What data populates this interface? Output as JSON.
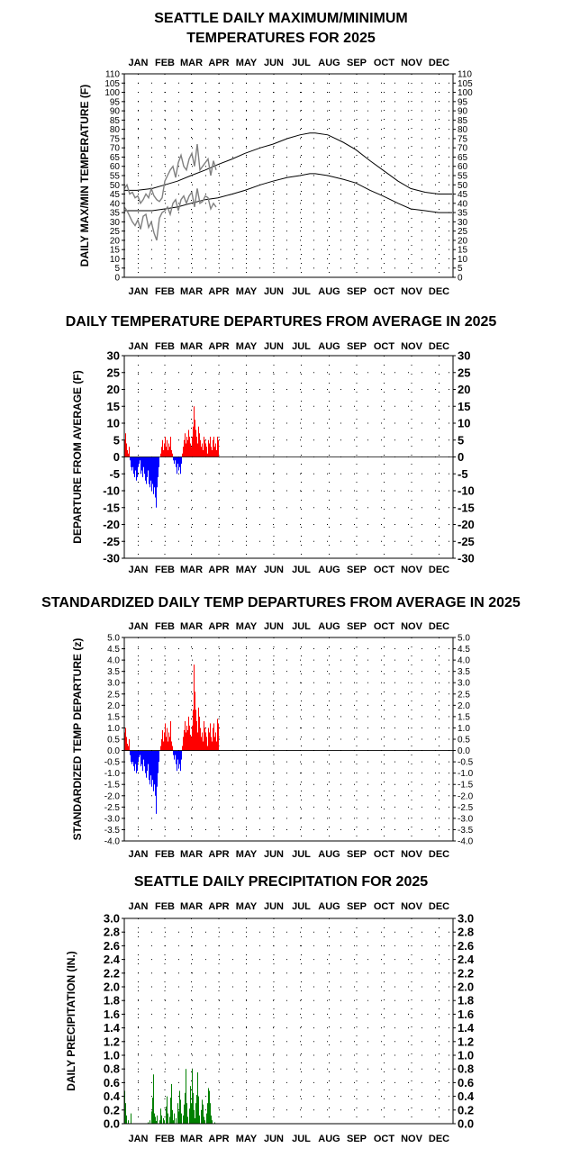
{
  "chart_data": [
    {
      "type": "line",
      "title_lines": [
        "SEATTLE DAILY MAXIMUM/MINIMUM",
        "TEMPERATURES FOR 2025"
      ],
      "ylabel": "DAILY MAX/MIN TEMPERATURE  (F)",
      "months": [
        "JAN",
        "FEB",
        "MAR",
        "APR",
        "MAY",
        "JUN",
        "JUL",
        "AUG",
        "SEP",
        "OCT",
        "NOV",
        "DEC"
      ],
      "ylim": [
        0,
        110
      ],
      "ytick_step": 5,
      "grid": "dotted",
      "series": [
        {
          "role": "normal-max",
          "color": "#000000",
          "x": [
            1,
            15,
            32,
            46,
            60,
            75,
            91,
            105,
            121,
            135,
            152,
            166,
            182,
            196,
            207,
            213,
            227,
            244,
            258,
            274,
            288,
            305,
            319,
            335,
            350,
            365
          ],
          "y": [
            47,
            47,
            48,
            50,
            52,
            55,
            58,
            61,
            64,
            67,
            70,
            72,
            75,
            77,
            78,
            78,
            77,
            73,
            69,
            63,
            58,
            52,
            48,
            46,
            45,
            45
          ]
        },
        {
          "role": "normal-min",
          "color": "#000000",
          "x": [
            1,
            15,
            32,
            46,
            60,
            75,
            91,
            105,
            121,
            135,
            152,
            166,
            182,
            196,
            207,
            213,
            227,
            244,
            258,
            274,
            288,
            305,
            319,
            335,
            350,
            365
          ],
          "y": [
            36,
            36,
            36,
            37,
            38,
            40,
            42,
            43,
            45,
            47,
            50,
            52,
            54,
            55,
            56,
            56,
            55,
            53,
            51,
            47,
            44,
            40,
            37,
            36,
            35,
            35
          ]
        },
        {
          "role": "observed-max",
          "color": "#808080",
          "x": [
            1,
            4,
            7,
            10,
            13,
            16,
            19,
            22,
            25,
            28,
            31,
            34,
            37,
            40,
            43,
            46,
            49,
            52,
            55,
            58,
            61,
            64,
            67,
            70,
            73,
            76,
            79,
            82,
            85,
            88,
            91,
            94,
            97,
            100,
            103
          ],
          "y": [
            48,
            50,
            45,
            46,
            43,
            44,
            40,
            42,
            45,
            43,
            48,
            44,
            42,
            41,
            43,
            52,
            55,
            58,
            60,
            54,
            62,
            66,
            60,
            58,
            64,
            67,
            60,
            72,
            58,
            60,
            62,
            64,
            55,
            63,
            58
          ]
        },
        {
          "role": "observed-min",
          "color": "#808080",
          "x": [
            1,
            4,
            7,
            10,
            13,
            16,
            19,
            22,
            25,
            28,
            31,
            34,
            37,
            40,
            43,
            46,
            49,
            52,
            55,
            58,
            61,
            64,
            67,
            70,
            73,
            76,
            79,
            82,
            85,
            88,
            91,
            94,
            97,
            100,
            103
          ],
          "y": [
            38,
            36,
            33,
            30,
            28,
            31,
            26,
            33,
            34,
            27,
            30,
            24,
            20,
            32,
            35,
            36,
            38,
            34,
            40,
            42,
            36,
            42,
            44,
            40,
            44,
            46,
            38,
            48,
            40,
            41,
            44,
            43,
            37,
            40,
            38
          ]
        }
      ]
    },
    {
      "type": "bar",
      "title": "DAILY TEMPERATURE DEPARTURES FROM AVERAGE IN 2025",
      "ylabel": "DEPARTURE FROM AVERAGE (F)",
      "months": [
        "JAN",
        "FEB",
        "MAR",
        "APR",
        "MAY",
        "JUN",
        "JUL",
        "AUG",
        "SEP",
        "OCT",
        "NOV",
        "DEC"
      ],
      "ylim": [
        -30,
        30
      ],
      "ytick_step": 5,
      "grid": "dotted",
      "positive_color": "#ff0000",
      "negative_color": "#0000ff",
      "day_values": [
        5,
        7,
        4,
        2,
        1,
        3,
        -1,
        -3,
        -4,
        -3,
        -5,
        -6,
        -4,
        -7,
        -6,
        -3,
        -2,
        -1,
        -5,
        -4,
        -6,
        -3,
        -5,
        -7,
        -8,
        -6,
        -4,
        -8,
        -9,
        -7,
        -10,
        -8,
        -11,
        -9,
        -12,
        -15,
        -9,
        -6,
        -3,
        0,
        1,
        3,
        5,
        2,
        4,
        6,
        3,
        5,
        2,
        4,
        3,
        6,
        2,
        1,
        -1,
        -2,
        -1,
        -3,
        -5,
        -2,
        -4,
        -3,
        -5,
        -2,
        1,
        3,
        5,
        7,
        4,
        6,
        5,
        8,
        6,
        4,
        3,
        6,
        9,
        15,
        11,
        8,
        6,
        4,
        9,
        7,
        5,
        3,
        4,
        2,
        6,
        5,
        4,
        3,
        1,
        5,
        4,
        6,
        3,
        2,
        5,
        6,
        3,
        4,
        2,
        6,
        5
      ]
    },
    {
      "type": "bar",
      "title": "STANDARDIZED DAILY TEMP DEPARTURES FROM AVERAGE IN 2025",
      "ylabel": "STANDARDIZED TEMP DEPARTURE  (z)",
      "months": [
        "JAN",
        "FEB",
        "MAR",
        "APR",
        "MAY",
        "JUN",
        "JUL",
        "AUG",
        "SEP",
        "OCT",
        "NOV",
        "DEC"
      ],
      "ylim": [
        -4.0,
        5.0
      ],
      "ytick_step": 0.5,
      "grid": "dotted",
      "positive_color": "#ff0000",
      "negative_color": "#0000ff",
      "day_values": [
        0.8,
        1.0,
        0.6,
        0.3,
        0.2,
        0.5,
        -0.2,
        -0.5,
        -0.6,
        -0.5,
        -0.7,
        -0.9,
        -0.6,
        -1.0,
        -0.9,
        -0.5,
        -0.3,
        -0.2,
        -0.7,
        -0.6,
        -0.9,
        -0.4,
        -0.7,
        -1.0,
        -1.2,
        -0.9,
        -0.6,
        -1.3,
        -1.5,
        -1.1,
        -1.6,
        -1.3,
        -1.8,
        -1.5,
        -2.0,
        -2.8,
        -1.6,
        -1.0,
        -0.5,
        0.0,
        0.2,
        0.5,
        0.9,
        0.4,
        0.8,
        1.2,
        0.6,
        1.0,
        0.4,
        0.8,
        0.6,
        1.3,
        0.4,
        0.2,
        -0.2,
        -0.4,
        -0.2,
        -0.6,
        -0.9,
        -0.4,
        -0.8,
        -0.6,
        -0.9,
        -0.4,
        0.2,
        0.6,
        0.9,
        1.3,
        0.8,
        1.1,
        0.9,
        1.5,
        1.1,
        0.7,
        0.6,
        1.1,
        1.8,
        3.8,
        2.6,
        1.8,
        1.3,
        0.8,
        1.9,
        1.5,
        1.0,
        0.6,
        0.8,
        0.4,
        1.3,
        1.0,
        0.8,
        0.6,
        0.2,
        1.0,
        0.8,
        1.2,
        0.6,
        0.4,
        1.0,
        1.2,
        0.6,
        0.8,
        0.4,
        1.4,
        1.2
      ]
    },
    {
      "type": "bar",
      "title": "SEATTLE DAILY PRECIPITATION FOR 2025",
      "ylabel": "DAILY PRECIPITATION (IN.)",
      "months": [
        "JAN",
        "FEB",
        "MAR",
        "APR",
        "MAY",
        "JUN",
        "JUL",
        "AUG",
        "SEP",
        "OCT",
        "NOV",
        "DEC"
      ],
      "ylim": [
        0.0,
        3.0
      ],
      "ytick_step": 0.2,
      "grid": "dotted",
      "bar_color": "#008000",
      "day_values": [
        0.48,
        0.3,
        0.12,
        0,
        0.05,
        0,
        0,
        0.15,
        0,
        0,
        0,
        0,
        0,
        0,
        0,
        0,
        0,
        0,
        0,
        0,
        0,
        0,
        0,
        0,
        0,
        0,
        0.02,
        0,
        0.05,
        0,
        0.18,
        0.38,
        0.72,
        0.15,
        0.1,
        0.04,
        0.12,
        0,
        0,
        0.05,
        0.22,
        0.12,
        0,
        0.08,
        0.05,
        0,
        0.25,
        0.4,
        0.15,
        0,
        0.1,
        0.38,
        0.58,
        0.2,
        0.05,
        0.15,
        0,
        0.08,
        0,
        0.3,
        0.18,
        0.48,
        0.35,
        0.15,
        0,
        0.12,
        0.28,
        0.45,
        0.8,
        0.3,
        0.1,
        0,
        0.22,
        0.55,
        0.3,
        0.8,
        0.45,
        0.2,
        0.08,
        0.3,
        0.42,
        0.75,
        0.4,
        0.12,
        0,
        0.2,
        0.35,
        0.28,
        0.1,
        0.05,
        0,
        0.15,
        0.3,
        0.52,
        0.48,
        0.3,
        0.12,
        0.05,
        0,
        0,
        0.02,
        0,
        0,
        0
      ]
    }
  ]
}
